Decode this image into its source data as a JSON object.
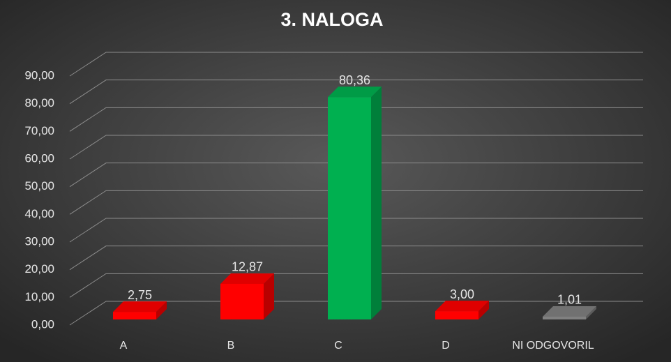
{
  "chart_data": {
    "type": "bar3d",
    "title": "3. NALOGA",
    "categories": [
      "A",
      "B",
      "C",
      "D",
      "NI ODGOVORIL"
    ],
    "values": [
      2.75,
      12.87,
      80.36,
      3.0,
      1.01
    ],
    "value_labels": [
      "2,75",
      "12,87",
      "80,36",
      "3,00",
      "1,01"
    ],
    "colors": [
      "#ff0000",
      "#ff0000",
      "#00b050",
      "#ff0000",
      "#808080"
    ],
    "ylim": [
      0,
      90
    ],
    "yticks": [
      {
        "value": 0,
        "label": "0,00"
      },
      {
        "value": 10,
        "label": "10,00"
      },
      {
        "value": 20,
        "label": "20,00"
      },
      {
        "value": 30,
        "label": "30,00"
      },
      {
        "value": 40,
        "label": "40,00"
      },
      {
        "value": 50,
        "label": "50,00"
      },
      {
        "value": 60,
        "label": "60,00"
      },
      {
        "value": 70,
        "label": "70,00"
      },
      {
        "value": 80,
        "label": "80,00"
      },
      {
        "value": 90,
        "label": "90,00"
      }
    ],
    "grid": true
  }
}
